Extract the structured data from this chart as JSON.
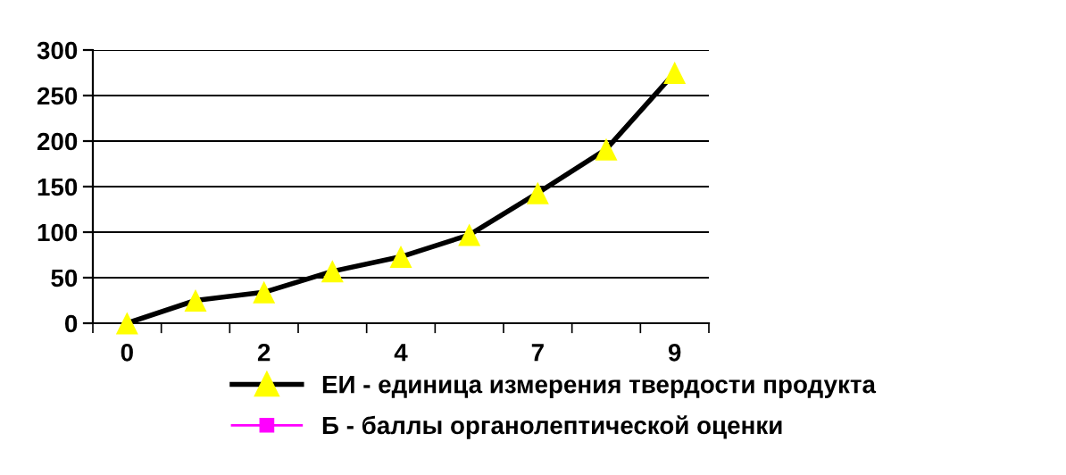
{
  "chart_data": {
    "type": "line",
    "categories": [
      "0",
      null,
      "2",
      null,
      "4",
      null,
      "7",
      null,
      "9"
    ],
    "series": [
      {
        "name": "ЕИ - единица измерения твердости продукта",
        "color": "#000000",
        "marker": "triangle",
        "colors": [
          "#ffff00",
          "#ffff00",
          "#ffff00",
          "#ffff00",
          "#ffff00",
          "#ffff00",
          "#ffff00",
          "#ffff00",
          "#ffff00"
        ],
        "values": [
          0,
          25,
          34,
          57,
          73,
          97,
          143,
          191,
          275
        ]
      },
      {
        "name": "Б - баллы органолептической оценки",
        "color": "#ff00ff",
        "marker": "square",
        "values": [
          null,
          null,
          null,
          null,
          null,
          null,
          null,
          null,
          null
        ]
      }
    ],
    "ylim": [
      0,
      300
    ],
    "yticks": [
      0,
      50,
      100,
      150,
      200,
      250,
      300
    ],
    "grid": "y",
    "legend": "bottom"
  }
}
